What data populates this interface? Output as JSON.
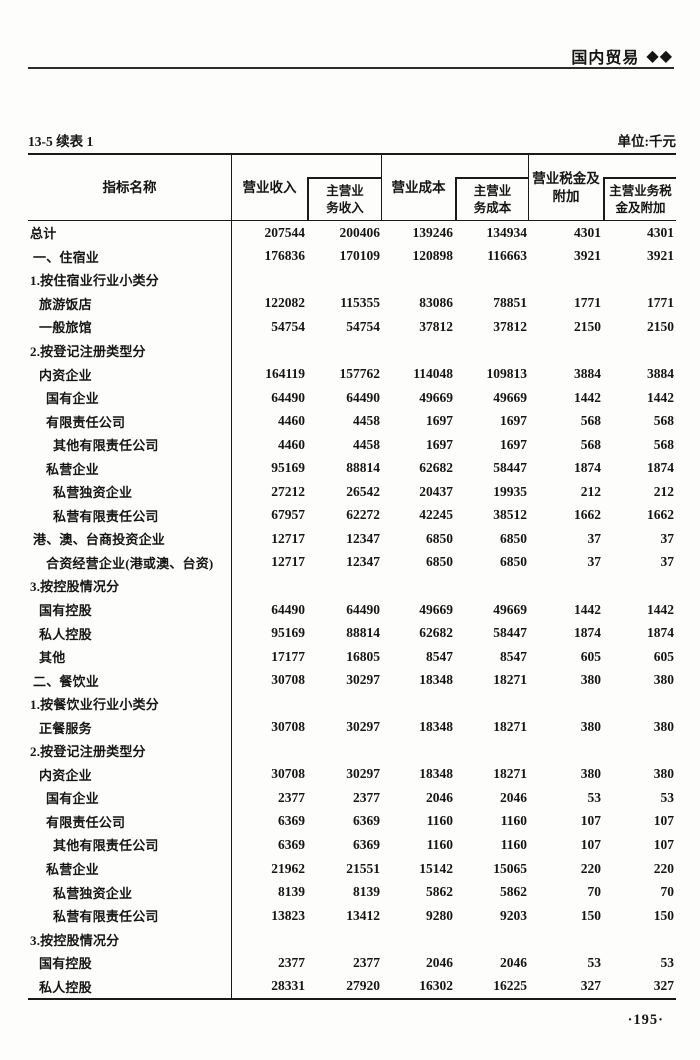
{
  "page": {
    "section_label": "国内贸易",
    "section_marker": "◆◆",
    "table_caption": "13-5 续表 1",
    "unit_note": "单位:千元",
    "page_number": "·195·"
  },
  "table": {
    "header": {
      "c1": "指标名称",
      "c2": "营业收入",
      "c3": "主营业\n务收入",
      "c4": "营业成本",
      "c5": "主营业\n务成本",
      "c6": "营业税金及\n附加",
      "c7": "主营业务税\n金及附加"
    },
    "columns": [
      "指标名称",
      "营业收入",
      "主营业务收入",
      "营业成本",
      "主营业务成本",
      "营业税金及附加",
      "主营业务税金及附加"
    ],
    "rows": [
      {
        "label": "总计",
        "indent": 0,
        "values": [
          207544,
          200406,
          139246,
          134934,
          4301,
          4301
        ]
      },
      {
        "label": "一、住宿业",
        "indent": 1,
        "values": [
          176836,
          170109,
          120898,
          116663,
          3921,
          3921
        ]
      },
      {
        "label": "1.按住宿业行业小类分",
        "indent": 0,
        "values": []
      },
      {
        "label": "旅游饭店",
        "indent": 2,
        "values": [
          122082,
          115355,
          83086,
          78851,
          1771,
          1771
        ]
      },
      {
        "label": "一般旅馆",
        "indent": 2,
        "values": [
          54754,
          54754,
          37812,
          37812,
          2150,
          2150
        ]
      },
      {
        "label": "2.按登记注册类型分",
        "indent": 0,
        "values": []
      },
      {
        "label": "内资企业",
        "indent": 2,
        "values": [
          164119,
          157762,
          114048,
          109813,
          3884,
          3884
        ]
      },
      {
        "label": "国有企业",
        "indent": 3,
        "values": [
          64490,
          64490,
          49669,
          49669,
          1442,
          1442
        ]
      },
      {
        "label": "有限责任公司",
        "indent": 3,
        "values": [
          4460,
          4458,
          1697,
          1697,
          568,
          568
        ]
      },
      {
        "label": "其他有限责任公司",
        "indent": 4,
        "values": [
          4460,
          4458,
          1697,
          1697,
          568,
          568
        ]
      },
      {
        "label": "私营企业",
        "indent": 3,
        "values": [
          95169,
          88814,
          62682,
          58447,
          1874,
          1874
        ]
      },
      {
        "label": "私营独资企业",
        "indent": 4,
        "values": [
          27212,
          26542,
          20437,
          19935,
          212,
          212
        ]
      },
      {
        "label": "私营有限责任公司",
        "indent": 4,
        "values": [
          67957,
          62272,
          42245,
          38512,
          1662,
          1662
        ]
      },
      {
        "label": "港、澳、台商投资企业",
        "indent": 1,
        "values": [
          12717,
          12347,
          6850,
          6850,
          37,
          37
        ]
      },
      {
        "label": "合资经营企业(港或澳、台资)",
        "indent": 3,
        "values": [
          12717,
          12347,
          6850,
          6850,
          37,
          37
        ]
      },
      {
        "label": "3.按控股情况分",
        "indent": 0,
        "values": []
      },
      {
        "label": "国有控股",
        "indent": 2,
        "values": [
          64490,
          64490,
          49669,
          49669,
          1442,
          1442
        ]
      },
      {
        "label": "私人控股",
        "indent": 2,
        "values": [
          95169,
          88814,
          62682,
          58447,
          1874,
          1874
        ]
      },
      {
        "label": "其他",
        "indent": 2,
        "values": [
          17177,
          16805,
          8547,
          8547,
          605,
          605
        ]
      },
      {
        "label": "二、餐饮业",
        "indent": 1,
        "values": [
          30708,
          30297,
          18348,
          18271,
          380,
          380
        ]
      },
      {
        "label": "1.按餐饮业行业小类分",
        "indent": 0,
        "values": []
      },
      {
        "label": "正餐服务",
        "indent": 2,
        "values": [
          30708,
          30297,
          18348,
          18271,
          380,
          380
        ]
      },
      {
        "label": "2.按登记注册类型分",
        "indent": 0,
        "values": []
      },
      {
        "label": "内资企业",
        "indent": 2,
        "values": [
          30708,
          30297,
          18348,
          18271,
          380,
          380
        ]
      },
      {
        "label": "国有企业",
        "indent": 3,
        "values": [
          2377,
          2377,
          2046,
          2046,
          53,
          53
        ]
      },
      {
        "label": "有限责任公司",
        "indent": 3,
        "values": [
          6369,
          6369,
          1160,
          1160,
          107,
          107
        ]
      },
      {
        "label": "其他有限责任公司",
        "indent": 4,
        "values": [
          6369,
          6369,
          1160,
          1160,
          107,
          107
        ]
      },
      {
        "label": "私营企业",
        "indent": 3,
        "values": [
          21962,
          21551,
          15142,
          15065,
          220,
          220
        ]
      },
      {
        "label": "私营独资企业",
        "indent": 4,
        "values": [
          8139,
          8139,
          5862,
          5862,
          70,
          70
        ]
      },
      {
        "label": "私营有限责任公司",
        "indent": 4,
        "values": [
          13823,
          13412,
          9280,
          9203,
          150,
          150
        ]
      },
      {
        "label": "3.按控股情况分",
        "indent": 0,
        "values": []
      },
      {
        "label": "国有控股",
        "indent": 2,
        "values": [
          2377,
          2377,
          2046,
          2046,
          53,
          53
        ]
      },
      {
        "label": "私人控股",
        "indent": 2,
        "values": [
          28331,
          27920,
          16302,
          16225,
          327,
          327
        ]
      }
    ]
  }
}
